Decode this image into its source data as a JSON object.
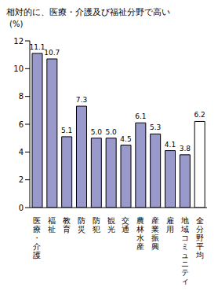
{
  "chart_data": {
    "type": "bar",
    "title": "相対的に、医療・介護及び福祉分野で高い",
    "y_label": "(%)",
    "categories": [
      "医療・介護",
      "福祉",
      "教育",
      "防災",
      "防犯",
      "観光",
      "交通",
      "農林水産",
      "産業振興",
      "雇用",
      "地域コミュニティ",
      "全分野平均"
    ],
    "values": [
      11.1,
      10.7,
      5.1,
      7.3,
      5.0,
      5.0,
      4.5,
      6.1,
      5.3,
      4.1,
      3.8,
      6.2
    ],
    "value_labels": [
      "11.1",
      "10.7",
      "5.1",
      "7.3",
      "5.0",
      "5.0",
      "4.5",
      "6.1",
      "5.3",
      "4.1",
      "3.8",
      "6.2"
    ],
    "colors": [
      "#9999cc",
      "#9999cc",
      "#9999cc",
      "#9999cc",
      "#9999cc",
      "#9999cc",
      "#9999cc",
      "#9999cc",
      "#9999cc",
      "#9999cc",
      "#9999cc",
      "#ffffff"
    ],
    "ylim": [
      0,
      12
    ],
    "yticks": [
      0,
      2,
      4,
      6,
      8,
      10,
      12
    ],
    "grid": false,
    "data_labels": true
  }
}
